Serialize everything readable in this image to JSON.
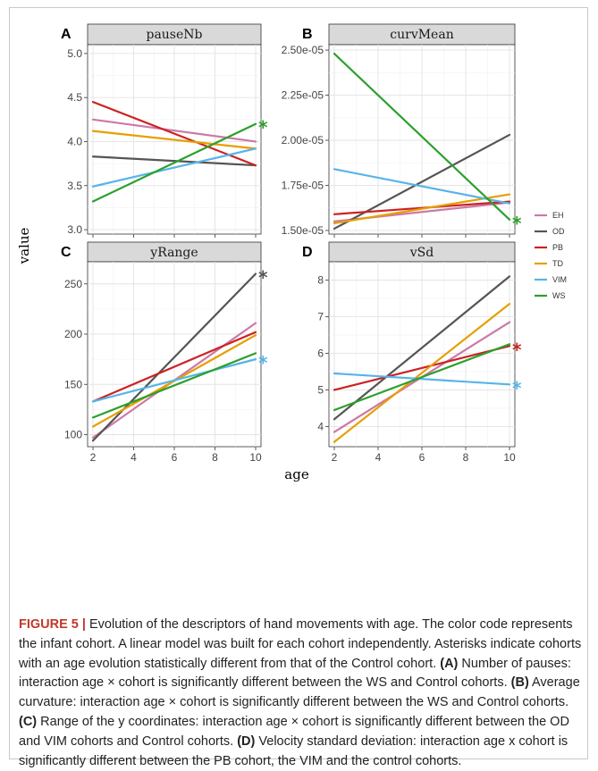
{
  "chart_data": {
    "type": "line",
    "x_axis_label": "age",
    "y_axis_label": "value",
    "x_ticks": [
      2,
      4,
      6,
      8,
      10
    ],
    "x_range": [
      2,
      10
    ],
    "legend": {
      "placement": "right",
      "entries": [
        {
          "name": "EH",
          "color": "#cc79a7"
        },
        {
          "name": "OD",
          "color": "#555555"
        },
        {
          "name": "PB",
          "color": "#cc2222"
        },
        {
          "name": "TD",
          "color": "#e69f00"
        },
        {
          "name": "VIM",
          "color": "#56b4e9"
        },
        {
          "name": "WS",
          "color": "#2ca02c"
        }
      ]
    },
    "grid": true,
    "panels": [
      {
        "letter": "A",
        "title": "pauseNb",
        "ylim": [
          2.95,
          5.1
        ],
        "y_ticks": [
          3.0,
          3.5,
          4.0,
          4.5,
          5.0
        ],
        "y_tick_labels": [
          "3.0",
          "3.5",
          "4.0",
          "4.5",
          "5.0"
        ],
        "series": [
          {
            "name": "EH",
            "x": [
              2,
              10
            ],
            "y": [
              4.25,
              4.0
            ]
          },
          {
            "name": "OD",
            "x": [
              2,
              10
            ],
            "y": [
              3.83,
              3.73
            ]
          },
          {
            "name": "PB",
            "x": [
              2,
              10
            ],
            "y": [
              4.45,
              3.73
            ]
          },
          {
            "name": "TD",
            "x": [
              2,
              10
            ],
            "y": [
              4.12,
              3.92
            ]
          },
          {
            "name": "VIM",
            "x": [
              2,
              10
            ],
            "y": [
              3.49,
              3.92
            ]
          },
          {
            "name": "WS",
            "x": [
              2,
              10
            ],
            "y": [
              3.32,
              4.2
            ]
          }
        ],
        "asterisks": [
          {
            "series": "WS",
            "x": 10,
            "y": 4.2
          }
        ]
      },
      {
        "letter": "B",
        "title": "curvMean",
        "ylim": [
          1.48e-05,
          2.53e-05
        ],
        "y_ticks": [
          1.5e-05,
          1.75e-05,
          2e-05,
          2.25e-05,
          2.5e-05
        ],
        "y_tick_labels": [
          "1.50e-05",
          "1.75e-05",
          "2.00e-05",
          "2.25e-05",
          "2.50e-05"
        ],
        "series": [
          {
            "name": "EH",
            "x": [
              2,
              10
            ],
            "y": [
              1.55e-05,
              1.655e-05
            ]
          },
          {
            "name": "OD",
            "x": [
              2,
              10
            ],
            "y": [
              1.51e-05,
              2.03e-05
            ]
          },
          {
            "name": "PB",
            "x": [
              2,
              10
            ],
            "y": [
              1.59e-05,
              1.66e-05
            ]
          },
          {
            "name": "TD",
            "x": [
              2,
              10
            ],
            "y": [
              1.54e-05,
              1.7e-05
            ]
          },
          {
            "name": "VIM",
            "x": [
              2,
              10
            ],
            "y": [
              1.84e-05,
              1.65e-05
            ]
          },
          {
            "name": "WS",
            "x": [
              2,
              10
            ],
            "y": [
              2.48e-05,
              1.56e-05
            ]
          }
        ],
        "asterisks": [
          {
            "series": "WS",
            "x": 10,
            "y": 1.56e-05
          }
        ]
      },
      {
        "letter": "C",
        "title": "yRange",
        "ylim": [
          88,
          272
        ],
        "y_ticks": [
          100,
          150,
          200,
          250
        ],
        "y_tick_labels": [
          "100",
          "150",
          "200",
          "250"
        ],
        "series": [
          {
            "name": "EH",
            "x": [
              2,
              10
            ],
            "y": [
              97,
              211
            ]
          },
          {
            "name": "OD",
            "x": [
              2,
              10
            ],
            "y": [
              94,
              260
            ]
          },
          {
            "name": "PB",
            "x": [
              2,
              10
            ],
            "y": [
              133,
              202
            ]
          },
          {
            "name": "TD",
            "x": [
              2,
              10
            ],
            "y": [
              108,
              199
            ]
          },
          {
            "name": "VIM",
            "x": [
              2,
              10
            ],
            "y": [
              133,
              175
            ]
          },
          {
            "name": "WS",
            "x": [
              2,
              10
            ],
            "y": [
              117,
              181
            ]
          }
        ],
        "asterisks": [
          {
            "series": "OD",
            "x": 10,
            "y": 260
          },
          {
            "series": "VIM",
            "x": 10,
            "y": 175
          }
        ]
      },
      {
        "letter": "D",
        "title": "vSd",
        "ylim": [
          3.45,
          8.5
        ],
        "y_ticks": [
          4,
          5,
          6,
          7,
          8
        ],
        "y_tick_labels": [
          "4",
          "5",
          "6",
          "7",
          "8"
        ],
        "series": [
          {
            "name": "EH",
            "x": [
              2,
              10
            ],
            "y": [
              3.85,
              6.85
            ]
          },
          {
            "name": "OD",
            "x": [
              2,
              10
            ],
            "y": [
              4.2,
              8.1
            ]
          },
          {
            "name": "PB",
            "x": [
              2,
              10
            ],
            "y": [
              5.0,
              6.2
            ]
          },
          {
            "name": "TD",
            "x": [
              2,
              10
            ],
            "y": [
              3.58,
              7.35
            ]
          },
          {
            "name": "VIM",
            "x": [
              2,
              10
            ],
            "y": [
              5.45,
              5.15
            ]
          },
          {
            "name": "WS",
            "x": [
              2,
              10
            ],
            "y": [
              4.45,
              6.25
            ]
          }
        ],
        "asterisks": [
          {
            "series": "PB",
            "x": 10,
            "y": 6.2
          },
          {
            "series": "VIM",
            "x": 10,
            "y": 5.15
          }
        ]
      }
    ]
  },
  "caption": {
    "figure_label": "FIGURE 5 |",
    "intro": " Evolution of the descriptors of hand movements with age. The color code represents the infant cohort. A linear model was built for each cohort independently. Asterisks indicate cohorts with an age evolution statistically different from that of the Control cohort. ",
    "a_label": "(A)",
    "a_text": " Number of pauses: interaction age × cohort is significantly different between the WS and Control cohorts. ",
    "b_label": "(B)",
    "b_text": " Average curvature: interaction age × cohort is significantly different between the WS and Control cohorts. ",
    "c_label": "(C)",
    "c_text": " Range of the y coordinates: interaction age × cohort is significantly different between the OD and VIM cohorts and Control cohorts. ",
    "d_label": "(D)",
    "d_text": " Velocity standard deviation: interaction age x cohort is significantly different between the PB cohort, the VIM and the control cohorts."
  }
}
